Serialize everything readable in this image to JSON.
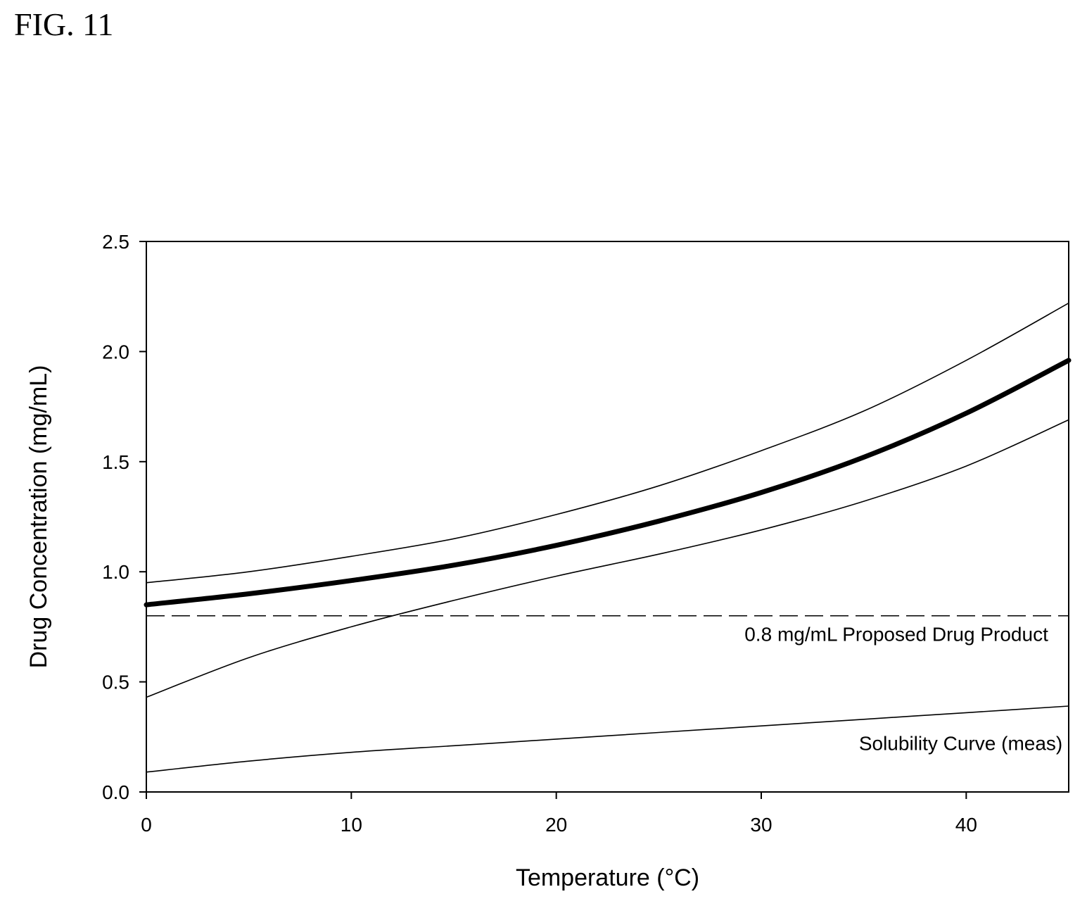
{
  "figure_label": "FIG. 11",
  "chart_data": {
    "type": "line",
    "title": "",
    "xlabel": "Temperature (°C)",
    "ylabel": "Drug Concentration (mg/mL)",
    "xlim": [
      0,
      45
    ],
    "ylim": [
      0,
      2.5
    ],
    "x_ticks": [
      0,
      10,
      20,
      30,
      40
    ],
    "y_ticks": [
      0.0,
      0.5,
      1.0,
      1.5,
      2.0,
      2.5
    ],
    "y_tick_labels": [
      "0.0",
      "0.5",
      "1.0",
      "1.5",
      "2.0",
      "2.5"
    ],
    "x_tick_labels": [
      "0",
      "10",
      "20",
      "30",
      "40"
    ],
    "grid": false,
    "legend": "none",
    "series": [
      {
        "style": "thick",
        "x": [
          0,
          5,
          10,
          15,
          20,
          25,
          30,
          35,
          40,
          45
        ],
        "y": [
          0.85,
          0.9,
          0.96,
          1.03,
          1.12,
          1.23,
          1.36,
          1.52,
          1.72,
          1.96
        ]
      },
      {
        "style": "thin",
        "x": [
          0,
          5,
          10,
          15,
          20,
          25,
          30,
          35,
          40,
          45
        ],
        "y": [
          0.95,
          1.0,
          1.07,
          1.15,
          1.26,
          1.39,
          1.55,
          1.73,
          1.96,
          2.22
        ]
      },
      {
        "style": "thin",
        "x": [
          0,
          5,
          10,
          15,
          20,
          25,
          30,
          35,
          40,
          45
        ],
        "y": [
          0.43,
          0.61,
          0.75,
          0.87,
          0.98,
          1.08,
          1.19,
          1.32,
          1.48,
          1.69
        ]
      },
      {
        "style": "thin",
        "x": [
          0,
          5,
          10,
          15,
          20,
          25,
          30,
          35,
          40,
          45
        ],
        "y": [
          0.09,
          0.14,
          0.18,
          0.21,
          0.24,
          0.27,
          0.3,
          0.33,
          0.36,
          0.39
        ]
      }
    ],
    "reference_line": {
      "y": 0.8,
      "style": "dashed"
    },
    "annotations": [
      {
        "text": "0.8 mg/mL Proposed Drug Product",
        "x": 44,
        "y": 0.685
      },
      {
        "text": "Solubility Curve (meas)",
        "x": 44.7,
        "y": 0.19
      }
    ]
  }
}
